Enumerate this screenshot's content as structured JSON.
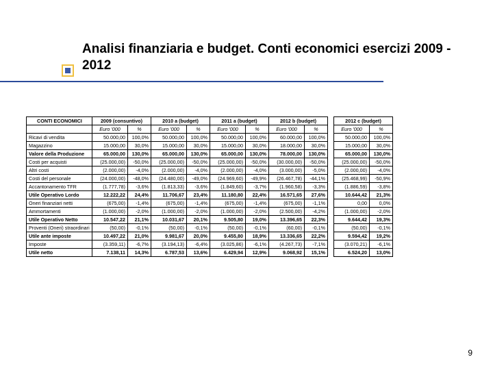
{
  "title": "Analisi finanziaria e budget. Conti economici esercizi 2009 - 2012",
  "page_number": "9",
  "table": {
    "label_header": "CONTI ECONOMICI",
    "sub_euro": "Euro '000",
    "sub_pct": "%",
    "year_headers": [
      "2009 (consuntivo)",
      "2010 a (budget)",
      "2011 a (budget)",
      "2012 b (budget)",
      "2012 c (budget)"
    ],
    "rows": [
      {
        "bold": false,
        "label": "Ricavi di vendita",
        "vals": [
          "50.000,00",
          "100,0%",
          "50.000,00",
          "100,0%",
          "50.000,00",
          "100,0%",
          "60.000,00",
          "100,0%",
          "50.000,00",
          "100,0%"
        ]
      },
      {
        "bold": false,
        "label": "Magazzino",
        "vals": [
          "15.000,00",
          "30,0%",
          "15.000,00",
          "30,0%",
          "15.000,00",
          "30,0%",
          "18.000,00",
          "30,0%",
          "15.000,00",
          "30,0%"
        ]
      },
      {
        "bold": true,
        "label": "Valore della Produzione",
        "vals": [
          "65.000,00",
          "130,0%",
          "65.000,00",
          "130,0%",
          "65.000,00",
          "130,0%",
          "78.000,00",
          "130,0%",
          "65.000,00",
          "130,0%"
        ]
      },
      {
        "bold": false,
        "label": "Costi per acquisti",
        "vals": [
          "(25.000,00)",
          "-50,0%",
          "(25.000,00)",
          "-50,0%",
          "(25.000,00)",
          "-50,0%",
          "(30.000,00)",
          "-50,0%",
          "(25.000,00)",
          "-50,0%"
        ]
      },
      {
        "bold": false,
        "label": "Altri costi",
        "vals": [
          "(2.000,00)",
          "-4,0%",
          "(2.000,00)",
          "-4,0%",
          "(2.000,00)",
          "-4,0%",
          "(3.000,00)",
          "-5,0%",
          "(2.000,00)",
          "-4,0%"
        ]
      },
      {
        "bold": false,
        "label": "Costi del personale",
        "vals": [
          "(24.000,00)",
          "-48,0%",
          "(24.480,00)",
          "-49,0%",
          "(24.969,60)",
          "-49,9%",
          "(26.467,78)",
          "-44,1%",
          "(25.468,99)",
          "-50,9%"
        ]
      },
      {
        "bold": false,
        "label": "Accantonamento TFR",
        "vals": [
          "(1.777,78)",
          "-3,6%",
          "(1.813,33)",
          "-3,6%",
          "(1.849,60)",
          "-3,7%",
          "(1.960,58)",
          "-3,3%",
          "(1.886,59)",
          "-3,8%"
        ]
      },
      {
        "bold": true,
        "label": "Utile Operativo Lordo",
        "vals": [
          "12.222,22",
          "24,4%",
          "11.706,67",
          "23,4%",
          "11.180,80",
          "22,4%",
          "16.571,65",
          "27,6%",
          "10.644,42",
          "21,3%"
        ]
      },
      {
        "bold": false,
        "label": "Oneri finanziari netti",
        "vals": [
          "(675,00)",
          "-1,4%",
          "(675,00)",
          "-1,4%",
          "(675,00)",
          "-1,4%",
          "(675,00)",
          "-1,1%",
          "0,00",
          "0,0%"
        ]
      },
      {
        "bold": false,
        "label": "Ammortamenti",
        "vals": [
          "(1.000,00)",
          "-2,0%",
          "(1.000,00)",
          "-2,0%",
          "(1.000,00)",
          "-2,0%",
          "(2.500,00)",
          "-4,2%",
          "(1.000,00)",
          "-2,0%"
        ]
      },
      {
        "bold": true,
        "label": "Utile Operativo Netto",
        "vals": [
          "10.547,22",
          "21,1%",
          "10.031,67",
          "20,1%",
          "9.505,80",
          "19,0%",
          "13.396,65",
          "22,3%",
          "9.644,42",
          "19,3%"
        ]
      },
      {
        "bold": false,
        "label": "Proventi (Oneri) straordinari",
        "vals": [
          "(50,00)",
          "-0,1%",
          "(50,00)",
          "-0,1%",
          "(50,00)",
          "-0,1%",
          "(60,00)",
          "-0,1%",
          "(50,00)",
          "-0,1%"
        ]
      },
      {
        "bold": true,
        "label": "Utile ante imposte",
        "vals": [
          "10.497,22",
          "21,0%",
          "9.981,67",
          "20,0%",
          "9.455,80",
          "18,9%",
          "13.336,65",
          "22,2%",
          "9.594,42",
          "19,2%"
        ]
      },
      {
        "bold": false,
        "label": "Imposte",
        "vals": [
          "(3.359,11)",
          "-6,7%",
          "(3.194,13)",
          "-6,4%",
          "(3.025,86)",
          "-6,1%",
          "(4.267,73)",
          "-7,1%",
          "(3.070,21)",
          "-6,1%"
        ]
      },
      {
        "bold": true,
        "label": "Utile netto",
        "vals": [
          "7.138,11",
          "14,3%",
          "6.787,53",
          "13,6%",
          "6.429,94",
          "12,9%",
          "9.068,92",
          "15,1%",
          "6.524,20",
          "13,0%"
        ]
      }
    ]
  },
  "style": {
    "title_color": "#000000",
    "underline_color": "#2a4a9a",
    "bullet_outer": "#f0c040",
    "bullet_inner": "#3b5aa6",
    "page_bg": "#ffffff"
  }
}
